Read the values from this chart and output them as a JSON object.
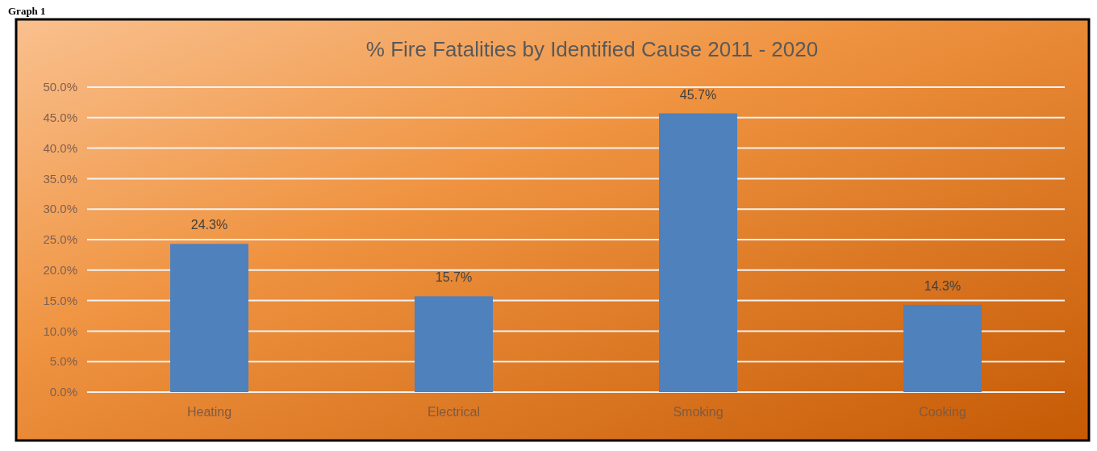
{
  "chart_data": {
    "type": "bar",
    "title": "% Fire Fatalities by Identified Cause 2011 - 2020",
    "annotations": [
      "Graph 1"
    ],
    "categories": [
      "Heating",
      "Electrical",
      "Smoking",
      "Cooking"
    ],
    "values": [
      24.3,
      15.7,
      45.7,
      14.3
    ],
    "value_labels": [
      "24.3%",
      "15.7%",
      "45.7%",
      "14.3%"
    ],
    "color": "#4f81bd",
    "ylim": [
      0,
      50
    ],
    "yticks": [
      {
        "value": 0,
        "label": "0.0%"
      },
      {
        "value": 5,
        "label": "5.0%"
      },
      {
        "value": 10,
        "label": "10.0%"
      },
      {
        "value": 15,
        "label": "15.0%"
      },
      {
        "value": 20,
        "label": "20.0%"
      },
      {
        "value": 25,
        "label": "25.0%"
      },
      {
        "value": 30,
        "label": "30.0%"
      },
      {
        "value": 35,
        "label": "35.0%"
      },
      {
        "value": 40,
        "label": "40.0%"
      },
      {
        "value": 45,
        "label": "45.0%"
      },
      {
        "value": 50,
        "label": "50.0%"
      }
    ],
    "grid": "y"
  }
}
